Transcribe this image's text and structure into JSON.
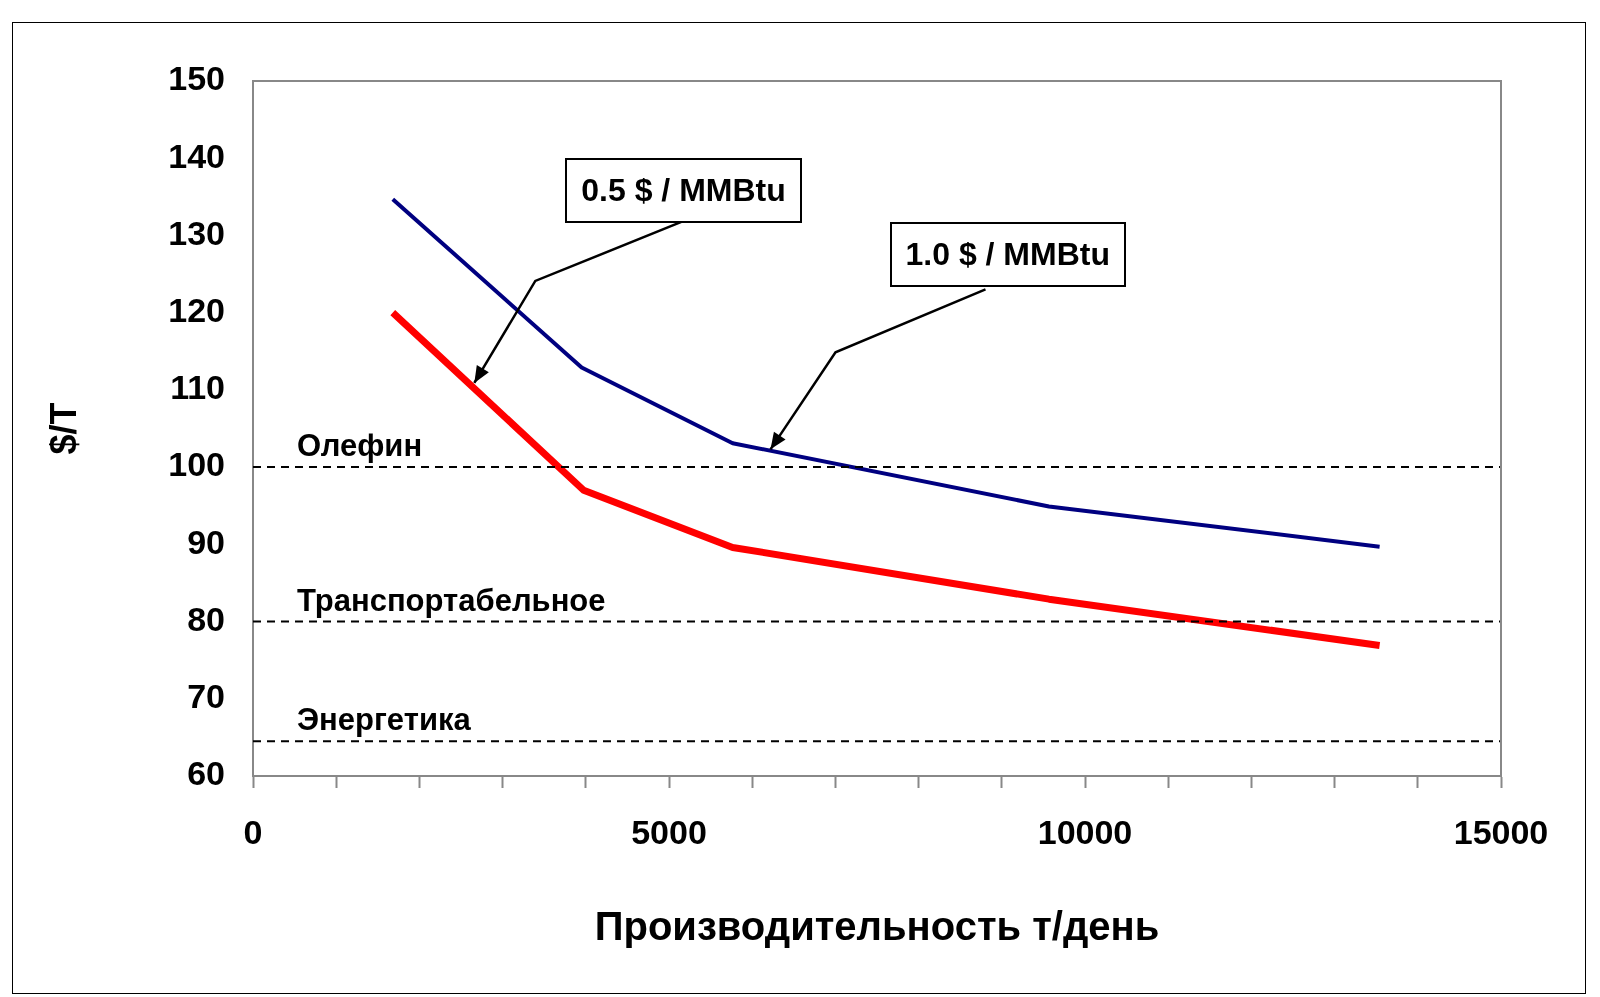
{
  "chart_data": {
    "type": "line",
    "xlabel": "Производительность т/день",
    "ylabel": "$/T",
    "series": [
      {
        "color": "#000080",
        "x": [
          1680,
          3950,
          5765,
          9567,
          13541
        ],
        "values": [
          134.7,
          112.9,
          103.1,
          94.9,
          89.7
        ]
      },
      {
        "color": "#ff0000",
        "x": [
          1680,
          3974,
          5765,
          9567,
          13541
        ],
        "values": [
          120,
          97,
          89.6,
          82.9,
          76.9
        ]
      }
    ],
    "xlim": [
      0,
      15000
    ],
    "xticks": [
      0,
      {
        "value": 1000,
        "label": null
      },
      {
        "value": 2000,
        "label": null
      },
      {
        "value": 3000,
        "label": null
      },
      {
        "value": 4000,
        "label": null
      },
      5000,
      {
        "value": 6000,
        "label": null
      },
      {
        "value": 7000,
        "label": null
      },
      {
        "value": 8000,
        "label": null
      },
      {
        "value": 9000,
        "label": null
      },
      10000,
      {
        "value": 11000,
        "label": null
      },
      {
        "value": 12000,
        "label": null
      },
      {
        "value": 13000,
        "label": null
      },
      {
        "value": 14000,
        "label": null
      },
      15000
    ],
    "ylim": [
      60,
      150
    ],
    "yticks": [
      60,
      70,
      80,
      90,
      100,
      110,
      120,
      130,
      140,
      150
    ],
    "ref_lines": [
      {
        "axis": "y",
        "value": 100,
        "label": "Олефин",
        "line_style": "dashed"
      },
      {
        "axis": "y",
        "value": 80,
        "label": "Транспортабельное",
        "line_style": "dashed"
      },
      {
        "axis": "y",
        "value": 64.5,
        "label": "Энергетика",
        "line_style": "dashed"
      }
    ],
    "annotations": [
      {
        "text": "0.5 $ / MMBtu",
        "x": 2660,
        "y": 110.9
      },
      {
        "text": "1.0 $ / MMBtu",
        "x": 6220,
        "y": 102.3
      }
    ],
    "grid": false,
    "legend": false,
    "marker": "none",
    "line_style": "solid"
  }
}
